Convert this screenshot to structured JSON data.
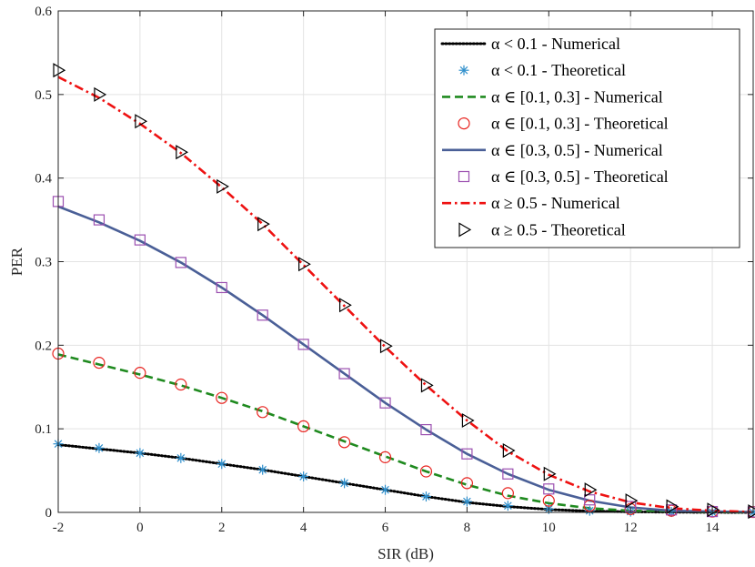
{
  "chart_data": {
    "type": "line",
    "title": "",
    "xlabel": "SIR (dB)",
    "ylabel": "PER",
    "xlim": [
      -2,
      15
    ],
    "ylim": [
      0,
      0.6
    ],
    "xticks": [
      -2,
      0,
      2,
      4,
      6,
      8,
      10,
      12,
      14
    ],
    "xtick_labels": [
      "-2",
      "0",
      "2",
      "4",
      "6",
      "8",
      "10",
      "12",
      "14"
    ],
    "yticks": [
      0,
      0.1,
      0.2,
      0.3,
      0.4,
      0.5,
      0.6
    ],
    "ytick_labels": [
      "0",
      "0.1",
      "0.2",
      "0.3",
      "0.4",
      "0.5",
      "0.6"
    ],
    "grid": true,
    "legend_position": "top-right",
    "series": [
      {
        "name": "α < 0.1 - Numerical",
        "style": "line",
        "dash": "dotted",
        "color": "#000000",
        "x": [
          -2,
          -1,
          0,
          1,
          2,
          3,
          4,
          5,
          6,
          7,
          8,
          9,
          10,
          11,
          12,
          13,
          14,
          15
        ],
        "y": [
          0.081,
          0.076,
          0.071,
          0.065,
          0.058,
          0.051,
          0.043,
          0.035,
          0.027,
          0.019,
          0.012,
          0.007,
          0.0035,
          0.0015,
          0.0007,
          0.0003,
          0.0001,
          0.0
        ]
      },
      {
        "name": "α < 0.1 - Theoretical",
        "style": "marker",
        "marker": "asterisk",
        "color": "#2f8fcc",
        "x": [
          -2,
          -1,
          0,
          1,
          2,
          3,
          4,
          5,
          6,
          7,
          8,
          9,
          10,
          11,
          12,
          13,
          14,
          15
        ],
        "y": [
          0.082,
          0.077,
          0.071,
          0.065,
          0.058,
          0.051,
          0.043,
          0.035,
          0.027,
          0.019,
          0.013,
          0.008,
          0.004,
          0.002,
          0.001,
          0.0005,
          0.0002,
          0.0001
        ]
      },
      {
        "name": "α ∈ [0.1, 0.3] - Numerical",
        "style": "line",
        "dash": "dashed",
        "color": "#1f8a1f",
        "x": [
          -2,
          -1,
          0,
          1,
          2,
          3,
          4,
          5,
          6,
          7,
          8,
          9,
          10,
          11,
          12,
          13,
          14,
          15
        ],
        "y": [
          0.189,
          0.177,
          0.165,
          0.152,
          0.137,
          0.121,
          0.103,
          0.085,
          0.067,
          0.049,
          0.033,
          0.02,
          0.011,
          0.005,
          0.002,
          0.001,
          0.0004,
          0.0001
        ]
      },
      {
        "name": "α ∈ [0.1, 0.3] - Theoretical",
        "style": "marker",
        "marker": "circle",
        "color": "#e8231f",
        "x": [
          -2,
          -1,
          0,
          1,
          2,
          3,
          4,
          5,
          6,
          7,
          8,
          9,
          10,
          11,
          12,
          13,
          14,
          15
        ],
        "y": [
          0.19,
          0.179,
          0.167,
          0.153,
          0.137,
          0.12,
          0.103,
          0.084,
          0.066,
          0.049,
          0.035,
          0.023,
          0.014,
          0.008,
          0.004,
          0.002,
          0.001,
          0.0005
        ]
      },
      {
        "name": "α ∈ [0.3, 0.5] - Numerical",
        "style": "line",
        "dash": "solid",
        "color": "#4a5f97",
        "x": [
          -2,
          -1,
          0,
          1,
          2,
          3,
          4,
          5,
          6,
          7,
          8,
          9,
          10,
          11,
          12,
          13,
          14,
          15
        ],
        "y": [
          0.366,
          0.347,
          0.325,
          0.299,
          0.269,
          0.236,
          0.201,
          0.166,
          0.131,
          0.099,
          0.07,
          0.046,
          0.027,
          0.014,
          0.006,
          0.002,
          0.001,
          0.0003
        ]
      },
      {
        "name": "α ∈ [0.3, 0.5] - Theoretical",
        "style": "marker",
        "marker": "square",
        "color": "#9b4fb0",
        "x": [
          -2,
          -1,
          0,
          1,
          2,
          3,
          4,
          5,
          6,
          7,
          8,
          9,
          10,
          11,
          12,
          13,
          14,
          15
        ],
        "y": [
          0.372,
          0.35,
          0.326,
          0.299,
          0.269,
          0.236,
          0.201,
          0.166,
          0.131,
          0.099,
          0.07,
          0.046,
          0.028,
          0.015,
          0.007,
          0.003,
          0.001,
          0.0005
        ]
      },
      {
        "name": "α ≥ 0.5 - Numerical",
        "style": "line",
        "dash": "dashdot",
        "color": "#ee1111",
        "x": [
          -2,
          -1,
          0,
          1,
          2,
          3,
          4,
          5,
          6,
          7,
          8,
          9,
          10,
          11,
          12,
          13,
          14,
          15
        ],
        "y": [
          0.521,
          0.496,
          0.465,
          0.43,
          0.389,
          0.345,
          0.296,
          0.247,
          0.198,
          0.152,
          0.11,
          0.073,
          0.045,
          0.025,
          0.012,
          0.005,
          0.002,
          0.0005
        ]
      },
      {
        "name": "α ≥ 0.5 - Theoretical",
        "style": "marker",
        "marker": "triangle-right",
        "color": "#000000",
        "x": [
          -2,
          -1,
          0,
          1,
          2,
          3,
          4,
          5,
          6,
          7,
          8,
          9,
          10,
          11,
          12,
          13,
          14,
          15
        ],
        "y": [
          0.529,
          0.5,
          0.468,
          0.431,
          0.39,
          0.345,
          0.297,
          0.248,
          0.199,
          0.152,
          0.11,
          0.074,
          0.046,
          0.027,
          0.014,
          0.007,
          0.003,
          0.001
        ]
      }
    ]
  }
}
